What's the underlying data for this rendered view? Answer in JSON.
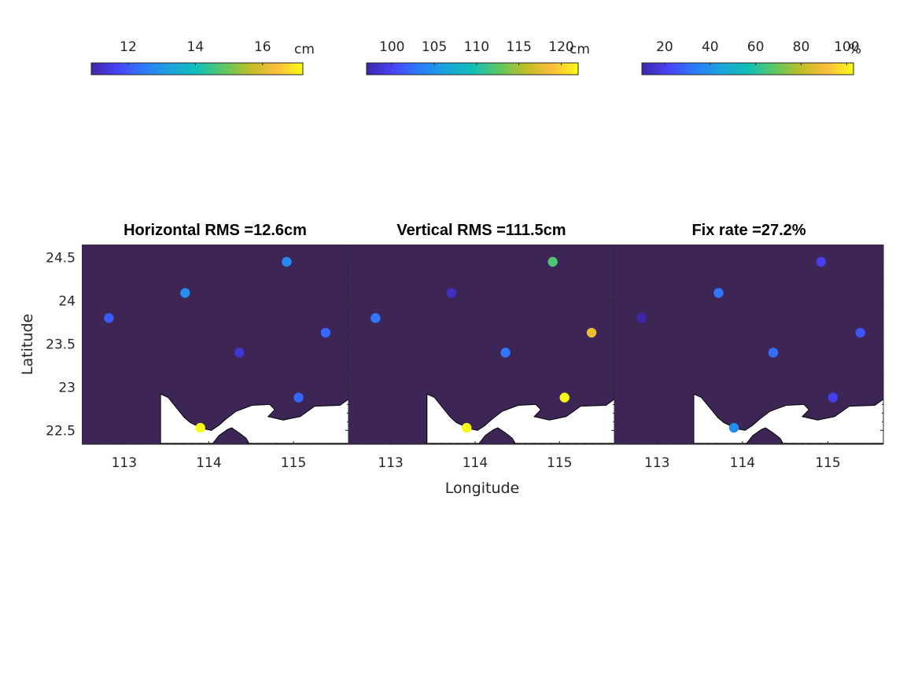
{
  "colors": {
    "sea": "#3d2656",
    "land": "#ffffff",
    "axis": "#262626",
    "parula": [
      "#3e26a8",
      "#4743f8",
      "#2c7bfe",
      "#1aa4db",
      "#10bfb9",
      "#5bc863",
      "#bebe26",
      "#fdbd3c",
      "#f9fb15"
    ]
  },
  "coastline": {
    "mainland": [
      [
        113.43,
        22.35
      ],
      [
        113.43,
        22.92
      ],
      [
        113.52,
        22.88
      ],
      [
        113.71,
        22.65
      ],
      [
        113.78,
        22.59
      ],
      [
        113.93,
        22.52
      ],
      [
        114.03,
        22.5
      ],
      [
        114.12,
        22.56
      ],
      [
        114.2,
        22.63
      ],
      [
        114.32,
        22.72
      ],
      [
        114.51,
        22.79
      ],
      [
        114.72,
        22.8
      ],
      [
        114.78,
        22.74
      ],
      [
        114.7,
        22.66
      ],
      [
        114.88,
        22.62
      ],
      [
        115.08,
        22.66
      ],
      [
        115.25,
        22.78
      ],
      [
        115.55,
        22.79
      ],
      [
        115.65,
        22.86
      ],
      [
        115.65,
        22.35
      ]
    ],
    "island": [
      [
        113.97,
        22.27
      ],
      [
        114.04,
        22.34
      ],
      [
        114.12,
        22.44
      ],
      [
        114.22,
        22.51
      ],
      [
        114.27,
        22.53
      ],
      [
        114.36,
        22.47
      ],
      [
        114.44,
        22.41
      ],
      [
        114.47,
        22.36
      ],
      [
        114.42,
        22.3
      ],
      [
        114.32,
        22.29
      ],
      [
        114.22,
        22.27
      ],
      [
        114.08,
        22.25
      ]
    ]
  },
  "chart_data": [
    {
      "type": "scatter",
      "title": "Horizontal RMS =12.6cm",
      "xlabel": "Longitude",
      "ylabel": "Latitude",
      "xlim": [
        112.5,
        115.65
      ],
      "ylim": [
        22.34,
        24.65
      ],
      "xticks": [
        113,
        114,
        115
      ],
      "yticks": [
        22.5,
        23,
        23.5,
        24,
        24.5
      ],
      "grid": false,
      "colorbar": {
        "location": "top",
        "unit": "cm",
        "clim": [
          10.9,
          17.2
        ],
        "ticks": [
          12,
          14,
          16
        ]
      },
      "points": [
        {
          "lon": 112.82,
          "lat": 23.8,
          "value": 12.0
        },
        {
          "lon": 113.72,
          "lat": 24.09,
          "value": 12.8
        },
        {
          "lon": 114.92,
          "lat": 24.45,
          "value": 12.7
        },
        {
          "lon": 115.38,
          "lat": 23.63,
          "value": 12.2
        },
        {
          "lon": 114.36,
          "lat": 23.4,
          "value": 11.3
        },
        {
          "lon": 115.06,
          "lat": 22.88,
          "value": 12.2
        },
        {
          "lon": 113.9,
          "lat": 22.53,
          "value": 17.2
        }
      ]
    },
    {
      "type": "scatter",
      "title": "Vertical RMS =111.5cm",
      "xlabel": "Longitude",
      "ylabel": "Latitude",
      "xlim": [
        112.5,
        115.65
      ],
      "ylim": [
        22.34,
        24.65
      ],
      "xticks": [
        113,
        114,
        115
      ],
      "yticks": [
        22.5,
        23,
        23.5,
        24,
        24.5
      ],
      "grid": false,
      "colorbar": {
        "location": "top",
        "unit": "cm",
        "clim": [
          97,
          122
        ],
        "ticks": [
          100,
          105,
          110,
          115,
          120
        ]
      },
      "points": [
        {
          "lon": 112.82,
          "lat": 23.8,
          "value": 103
        },
        {
          "lon": 113.72,
          "lat": 24.09,
          "value": 98
        },
        {
          "lon": 114.92,
          "lat": 24.45,
          "value": 112
        },
        {
          "lon": 115.38,
          "lat": 23.63,
          "value": 118
        },
        {
          "lon": 114.36,
          "lat": 23.4,
          "value": 103
        },
        {
          "lon": 115.06,
          "lat": 22.88,
          "value": 122
        },
        {
          "lon": 113.9,
          "lat": 22.53,
          "value": 122
        }
      ]
    },
    {
      "type": "scatter",
      "title": "Fix rate =27.2%",
      "xlabel": "Longitude",
      "ylabel": "Latitude",
      "xlim": [
        112.5,
        115.65
      ],
      "ylim": [
        22.34,
        24.65
      ],
      "xticks": [
        113,
        114,
        115
      ],
      "yticks": [
        22.5,
        23,
        23.5,
        24,
        24.5
      ],
      "grid": false,
      "colorbar": {
        "location": "top",
        "unit": "%",
        "clim": [
          10,
          103
        ],
        "ticks": [
          20,
          40,
          60,
          80,
          100
        ]
      },
      "points": [
        {
          "lon": 112.82,
          "lat": 23.8,
          "value": 10
        },
        {
          "lon": 113.72,
          "lat": 24.09,
          "value": 32
        },
        {
          "lon": 114.92,
          "lat": 24.45,
          "value": 20
        },
        {
          "lon": 115.38,
          "lat": 23.63,
          "value": 25
        },
        {
          "lon": 114.36,
          "lat": 23.4,
          "value": 31
        },
        {
          "lon": 115.06,
          "lat": 22.88,
          "value": 20
        },
        {
          "lon": 113.9,
          "lat": 22.53,
          "value": 38
        }
      ]
    }
  ]
}
